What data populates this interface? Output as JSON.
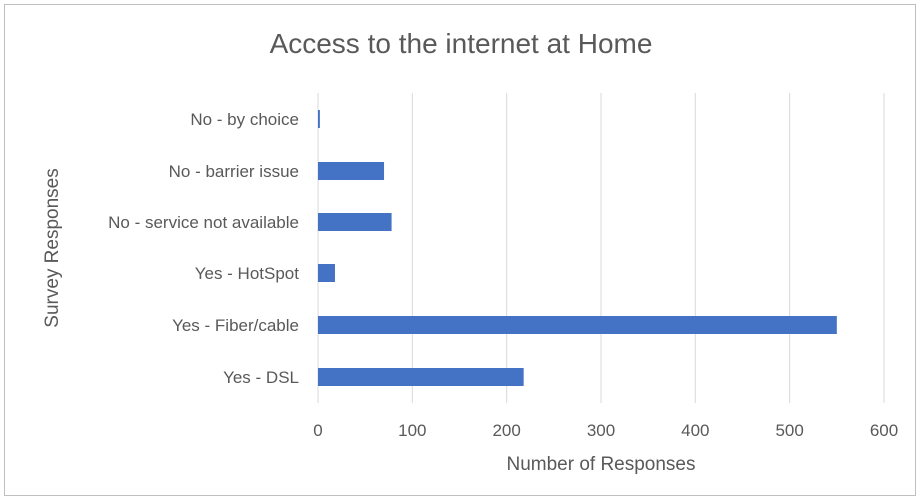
{
  "chart_data": {
    "type": "bar",
    "orientation": "horizontal",
    "title": "Access to the internet at Home",
    "xlabel": "Number of Responses",
    "ylabel": "Survey Responses",
    "categories": [
      "No - by choice",
      "No - barrier issue",
      "No - service not available",
      "Yes - HotSpot",
      "Yes - Fiber/cable",
      "Yes - DSL"
    ],
    "values": [
      2,
      70,
      78,
      18,
      550,
      218
    ],
    "xlim": [
      0,
      600
    ],
    "xticks": [
      0,
      100,
      200,
      300,
      400,
      500,
      600
    ],
    "grid": "vertical",
    "legend": "none",
    "bar_color": "#4472c4",
    "grid_color": "#d9d9d9"
  }
}
